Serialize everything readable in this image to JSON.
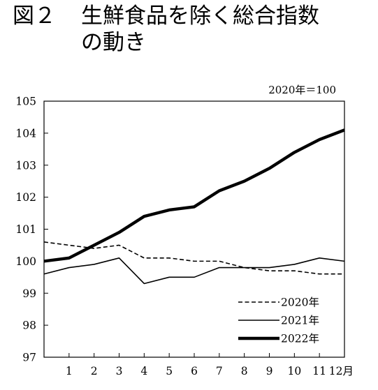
{
  "figure": {
    "number": "図２",
    "title_line1": "生鮮食品を除く総合指数",
    "title_line2": "の動き"
  },
  "chart_data": {
    "type": "line",
    "title": "生鮮食品を除く総合指数の動き",
    "unit_note": "2020年＝100",
    "xlabel": "",
    "ylabel": "",
    "x": [
      0,
      1,
      2,
      3,
      4,
      5,
      6,
      7,
      8,
      9,
      10,
      11,
      12
    ],
    "x_tick_values": [
      1,
      2,
      3,
      4,
      5,
      6,
      7,
      8,
      9,
      10,
      11,
      12
    ],
    "x_tick_labels": [
      "1",
      "2",
      "3",
      "4",
      "5",
      "6",
      "7",
      "8",
      "9",
      "10",
      "11",
      "12月"
    ],
    "xlim": [
      0,
      12
    ],
    "ylim": [
      97,
      105
    ],
    "y_ticks": [
      97,
      98,
      99,
      100,
      101,
      102,
      103,
      104,
      105
    ],
    "grid": false,
    "legend_position": "bottom-right",
    "series": [
      {
        "name": "2020年",
        "style": "dashed",
        "color": "#000000",
        "values": [
          100.6,
          100.5,
          100.4,
          100.5,
          100.1,
          100.1,
          100.0,
          100.0,
          99.8,
          99.7,
          99.7,
          99.6,
          99.6
        ]
      },
      {
        "name": "2021年",
        "style": "thin",
        "color": "#000000",
        "values": [
          99.6,
          99.8,
          99.9,
          100.1,
          99.3,
          99.5,
          99.5,
          99.8,
          99.8,
          99.8,
          99.9,
          100.1,
          100.0
        ]
      },
      {
        "name": "2022年",
        "style": "thick",
        "color": "#000000",
        "values": [
          100.0,
          100.1,
          100.5,
          100.9,
          101.4,
          101.6,
          101.7,
          102.2,
          102.5,
          102.9,
          103.4,
          103.8,
          104.1
        ]
      }
    ]
  }
}
